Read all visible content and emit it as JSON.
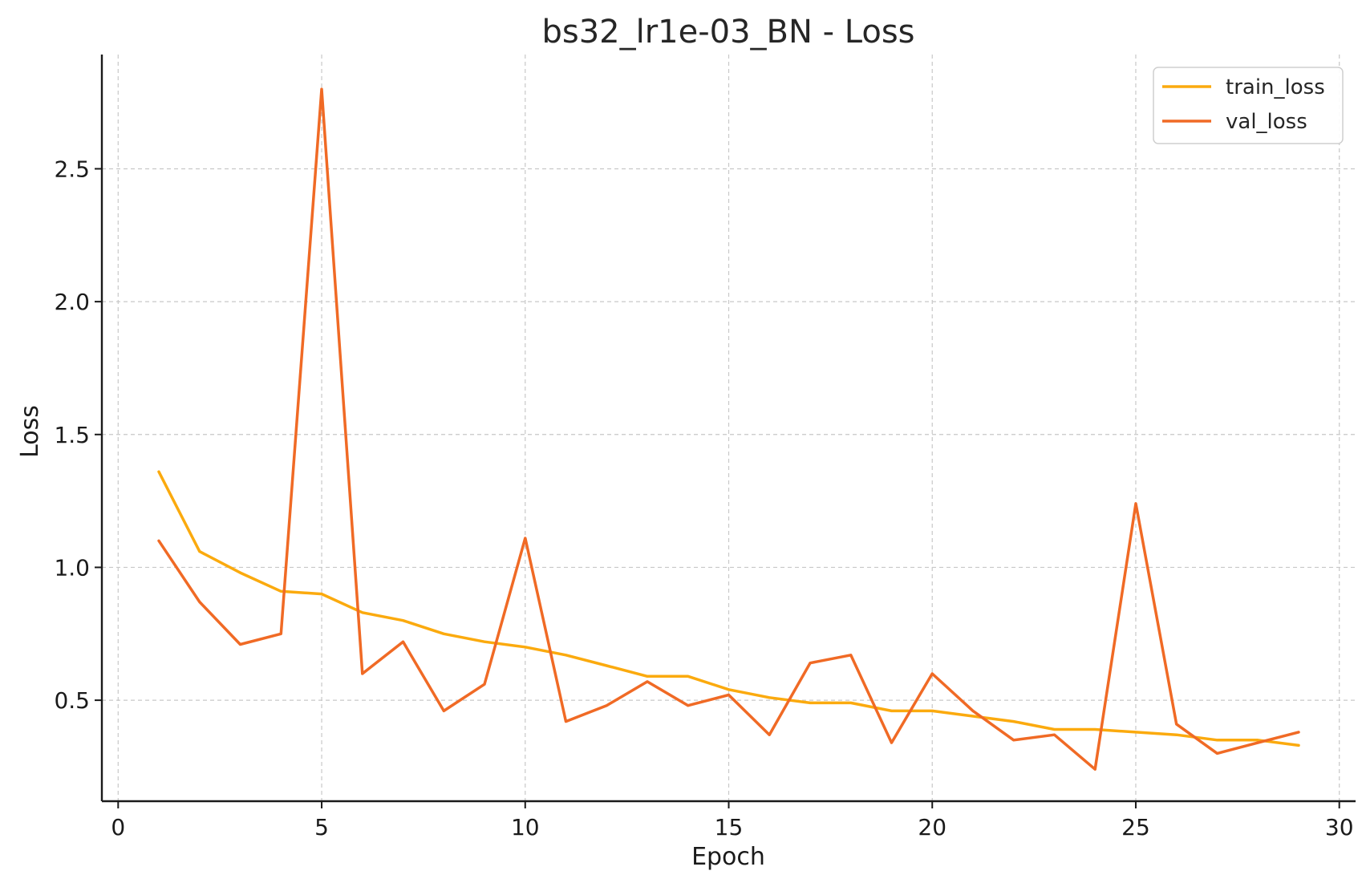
{
  "chart_data": {
    "type": "line",
    "title": "bs32_lr1e-03_BN - Loss",
    "xlabel": "Epoch",
    "ylabel": "Loss",
    "xlim": [
      -0.4,
      30.4
    ],
    "ylim": [
      0.12,
      2.93
    ],
    "xticks": [
      0,
      5,
      10,
      15,
      20,
      25,
      30
    ],
    "xtick_labels": [
      "0",
      "5",
      "10",
      "15",
      "20",
      "25",
      "30"
    ],
    "yticks": [
      0.5,
      1.0,
      1.5,
      2.0,
      2.5
    ],
    "ytick_labels": [
      "0.5",
      "1.0",
      "1.5",
      "2.0",
      "2.5"
    ],
    "grid": true,
    "legend_position": "top-right",
    "x": [
      1,
      2,
      3,
      4,
      5,
      6,
      7,
      8,
      9,
      10,
      11,
      12,
      13,
      14,
      15,
      16,
      17,
      18,
      19,
      20,
      21,
      22,
      23,
      24,
      25,
      26,
      27,
      28,
      29
    ],
    "series": [
      {
        "name": "train_loss",
        "color": "#FBAA0E",
        "values": [
          1.36,
          1.06,
          0.98,
          0.91,
          0.9,
          0.83,
          0.8,
          0.75,
          0.72,
          0.7,
          0.67,
          0.63,
          0.59,
          0.59,
          0.54,
          0.51,
          0.49,
          0.49,
          0.46,
          0.46,
          0.44,
          0.42,
          0.39,
          0.39,
          0.38,
          0.37,
          0.35,
          0.35,
          0.33
        ]
      },
      {
        "name": "val_loss",
        "color": "#F06A25",
        "values": [
          1.1,
          0.87,
          0.71,
          0.75,
          2.8,
          0.6,
          0.72,
          0.46,
          0.56,
          1.11,
          0.42,
          0.48,
          0.57,
          0.48,
          0.52,
          0.37,
          0.64,
          0.67,
          0.34,
          0.6,
          0.46,
          0.35,
          0.37,
          0.24,
          1.24,
          0.41,
          0.3,
          0.34,
          0.38
        ]
      }
    ]
  }
}
